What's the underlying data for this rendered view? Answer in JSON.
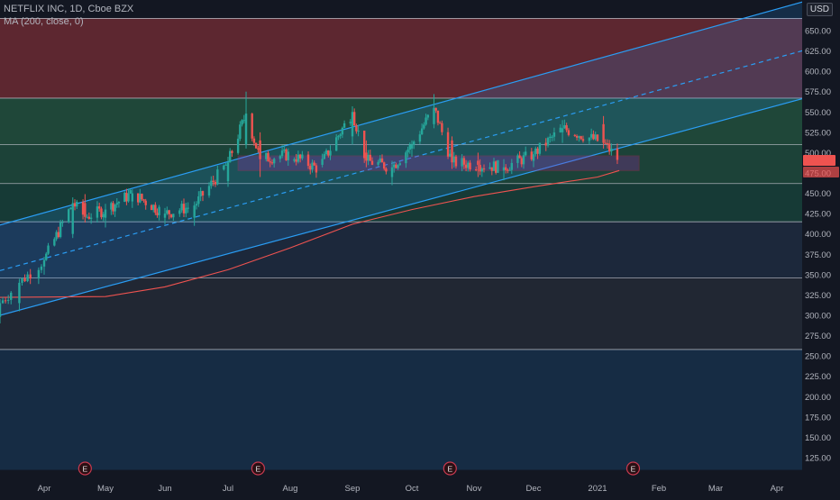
{
  "header": {
    "symbol_line": "NETFLIX INC, 1D, Cboe BZX",
    "indicator_line": "MA (200, close, 0)",
    "currency": "USD",
    "top_price_fragment": "6"
  },
  "price_tags": {
    "last_price": "",
    "ma_value": ""
  },
  "chart_data": {
    "type": "candlestick",
    "x_labels": [
      "Apr",
      "May",
      "Jun",
      "Jul",
      "Aug",
      "Sep",
      "Oct",
      "Nov",
      "Dec",
      "2021",
      "Feb",
      "Mar",
      "Apr"
    ],
    "y_ticks": [
      125,
      150,
      175,
      200,
      225,
      250,
      275,
      300,
      325,
      350,
      375,
      400,
      425,
      450,
      475,
      500,
      525,
      550,
      575,
      600,
      625,
      650
    ],
    "ylim": [
      110,
      680
    ],
    "earnings_markers": [
      {
        "label": "E",
        "date": "2020-04-21"
      },
      {
        "label": "E",
        "date": "2020-07-16"
      },
      {
        "label": "E",
        "date": "2020-10-20"
      },
      {
        "label": "E",
        "date": "2021-01-19"
      }
    ],
    "horizontal_levels": [
      258,
      346,
      415,
      462,
      510,
      567,
      665
    ],
    "zones": [
      {
        "from": 567,
        "to": 665,
        "color": "#6b2a32"
      },
      {
        "from": 510,
        "to": 567,
        "color": "#22503d"
      },
      {
        "from": 462,
        "to": 510,
        "color": "#1e4a3c"
      },
      {
        "from": 415,
        "to": 462,
        "color": "#17413a"
      },
      {
        "from": 346,
        "to": 415,
        "color": "#1e2c3f"
      },
      {
        "from": 258,
        "to": 346,
        "color": "#252a36"
      },
      {
        "from": 110,
        "to": 258,
        "color": "#17304a"
      }
    ],
    "consolidation_box": {
      "from": 478,
      "to": 496,
      "start": "2020-07-06",
      "end": "2021-01-22"
    },
    "channel": {
      "upper": [
        [
          "2020-03-16",
          411
        ],
        [
          "2021-04-16",
          687
        ]
      ],
      "median": [
        [
          "2020-03-16",
          355
        ],
        [
          "2021-04-16",
          627
        ]
      ],
      "lower": [
        [
          "2020-03-16",
          300
        ],
        [
          "2021-04-16",
          568
        ]
      ]
    },
    "ma200": [
      [
        "2020-03-16",
        322
      ],
      [
        "2020-05-01",
        323
      ],
      [
        "2020-06-01",
        335
      ],
      [
        "2020-07-01",
        356
      ],
      [
        "2020-08-01",
        383
      ],
      [
        "2020-09-01",
        412
      ],
      [
        "2020-10-01",
        430
      ],
      [
        "2020-11-01",
        446
      ],
      [
        "2020-12-01",
        458
      ],
      [
        "2021-01-01",
        470
      ],
      [
        "2021-01-12",
        478
      ]
    ],
    "candles_daily_sample": [
      [
        "2020-03-16",
        298,
        320,
        290,
        315
      ],
      [
        "2020-03-23",
        315,
        345,
        305,
        340
      ],
      [
        "2020-04-01",
        360,
        372,
        350,
        368
      ],
      [
        "2020-04-15",
        400,
        445,
        395,
        438
      ],
      [
        "2020-04-21",
        438,
        449,
        414,
        421
      ],
      [
        "2020-05-01",
        420,
        437,
        408,
        430
      ],
      [
        "2020-05-15",
        440,
        455,
        432,
        450
      ],
      [
        "2020-06-01",
        420,
        432,
        412,
        425
      ],
      [
        "2020-06-15",
        420,
        440,
        410,
        435
      ],
      [
        "2020-07-01",
        465,
        495,
        458,
        488
      ],
      [
        "2020-07-10",
        510,
        575,
        505,
        548
      ],
      [
        "2020-07-17",
        515,
        525,
        470,
        492
      ],
      [
        "2020-08-01",
        490,
        505,
        475,
        498
      ],
      [
        "2020-08-15",
        485,
        498,
        470,
        480
      ],
      [
        "2020-09-01",
        520,
        557,
        510,
        550
      ],
      [
        "2020-09-08",
        500,
        515,
        482,
        490
      ],
      [
        "2020-09-21",
        470,
        490,
        460,
        482
      ],
      [
        "2020-10-01",
        505,
        515,
        495,
        510
      ],
      [
        "2020-10-12",
        535,
        572,
        530,
        555
      ],
      [
        "2020-10-21",
        515,
        520,
        480,
        488
      ],
      [
        "2020-11-03",
        490,
        500,
        470,
        485
      ],
      [
        "2020-11-16",
        478,
        492,
        466,
        482
      ],
      [
        "2020-12-01",
        490,
        502,
        482,
        498
      ],
      [
        "2020-12-15",
        525,
        540,
        512,
        530
      ],
      [
        "2021-01-04",
        535,
        545,
        505,
        512
      ],
      [
        "2021-01-12",
        500,
        506,
        485,
        490
      ]
    ]
  }
}
